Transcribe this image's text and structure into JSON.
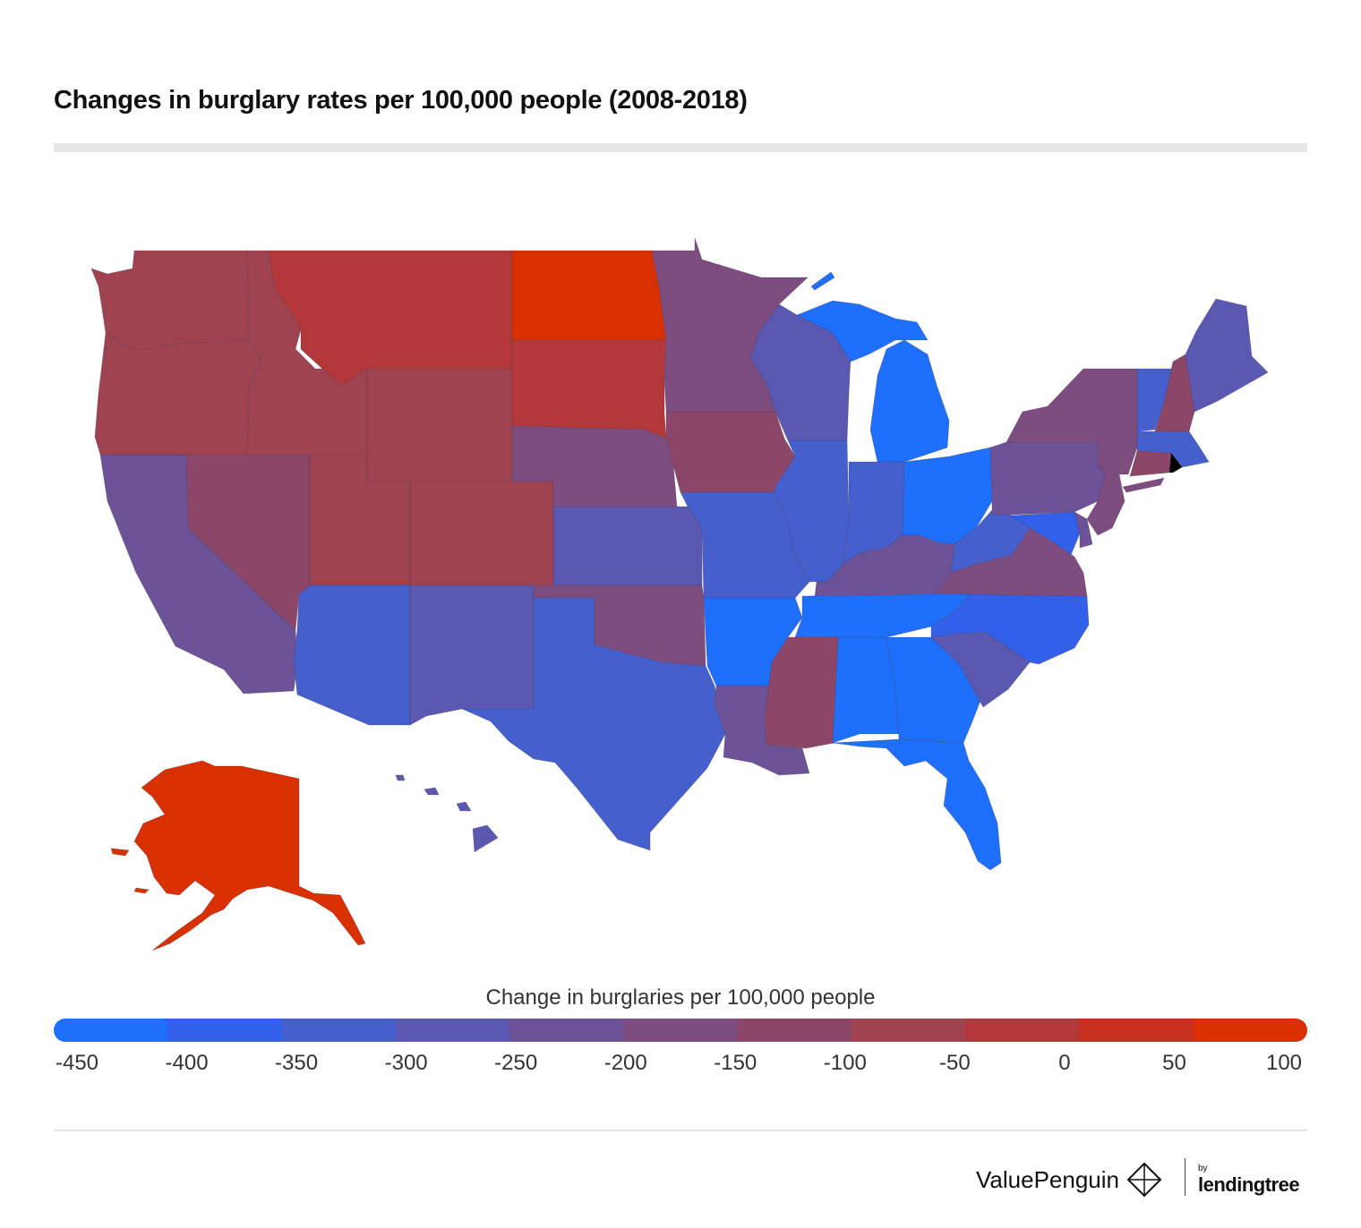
{
  "title": "Changes in burglary rates per 100,000 people (2008-2018)",
  "legend": {
    "title": "Change in burglaries per 100,000 people",
    "ticks": [
      "-450",
      "-400",
      "-350",
      "-300",
      "-250",
      "-200",
      "-150",
      "-100",
      "-50",
      "0",
      "50",
      "100"
    ],
    "colors": [
      "#1f6ffd",
      "#3360e8",
      "#4560cd",
      "#5a58b0",
      "#6c5296",
      "#7e4d80",
      "#8c4768",
      "#a04350",
      "#b2383a",
      "#c53020",
      "#d93000"
    ]
  },
  "brand": {
    "primary": "ValuePenguin",
    "by": "by",
    "partner": "lendingtree"
  },
  "map_data": {
    "type": "choropleth",
    "regions": [
      {
        "name": "Washington",
        "value": -75
      },
      {
        "name": "Oregon",
        "value": -75
      },
      {
        "name": "California",
        "value": -225
      },
      {
        "name": "Nevada",
        "value": -125
      },
      {
        "name": "Idaho",
        "value": -75
      },
      {
        "name": "Montana",
        "value": -25
      },
      {
        "name": "Wyoming",
        "value": -75
      },
      {
        "name": "Utah",
        "value": -75
      },
      {
        "name": "Arizona",
        "value": -325
      },
      {
        "name": "Colorado",
        "value": -75
      },
      {
        "name": "New Mexico",
        "value": -275
      },
      {
        "name": "North Dakota",
        "value": 75
      },
      {
        "name": "South Dakota",
        "value": -25
      },
      {
        "name": "Nebraska",
        "value": -175
      },
      {
        "name": "Kansas",
        "value": -275
      },
      {
        "name": "Oklahoma",
        "value": -175
      },
      {
        "name": "Texas",
        "value": -325
      },
      {
        "name": "Minnesota",
        "value": -175
      },
      {
        "name": "Iowa",
        "value": -125
      },
      {
        "name": "Missouri",
        "value": -325
      },
      {
        "name": "Arkansas",
        "value": -425
      },
      {
        "name": "Louisiana",
        "value": -225
      },
      {
        "name": "Wisconsin",
        "value": -275
      },
      {
        "name": "Illinois",
        "value": -325
      },
      {
        "name": "Michigan",
        "value": -425
      },
      {
        "name": "Indiana",
        "value": -325
      },
      {
        "name": "Ohio",
        "value": -425
      },
      {
        "name": "Kentucky",
        "value": -225
      },
      {
        "name": "Tennessee",
        "value": -425
      },
      {
        "name": "Mississippi",
        "value": -125
      },
      {
        "name": "Alabama",
        "value": -425
      },
      {
        "name": "Georgia",
        "value": -425
      },
      {
        "name": "Florida",
        "value": -425
      },
      {
        "name": "South Carolina",
        "value": -275
      },
      {
        "name": "North Carolina",
        "value": -375
      },
      {
        "name": "Virginia",
        "value": -175
      },
      {
        "name": "West Virginia",
        "value": -325
      },
      {
        "name": "Pennsylvania",
        "value": -225
      },
      {
        "name": "New York",
        "value": -175
      },
      {
        "name": "Vermont",
        "value": -325
      },
      {
        "name": "New Hampshire",
        "value": -125
      },
      {
        "name": "Maine",
        "value": -275
      },
      {
        "name": "Massachusetts",
        "value": -325
      },
      {
        "name": "Connecticut",
        "value": -125
      },
      {
        "name": "New Jersey",
        "value": -175
      },
      {
        "name": "Maryland",
        "value": -375
      },
      {
        "name": "Delaware",
        "value": -225
      },
      {
        "name": "Alaska",
        "value": 75
      },
      {
        "name": "Hawaii",
        "value": -275
      }
    ]
  }
}
